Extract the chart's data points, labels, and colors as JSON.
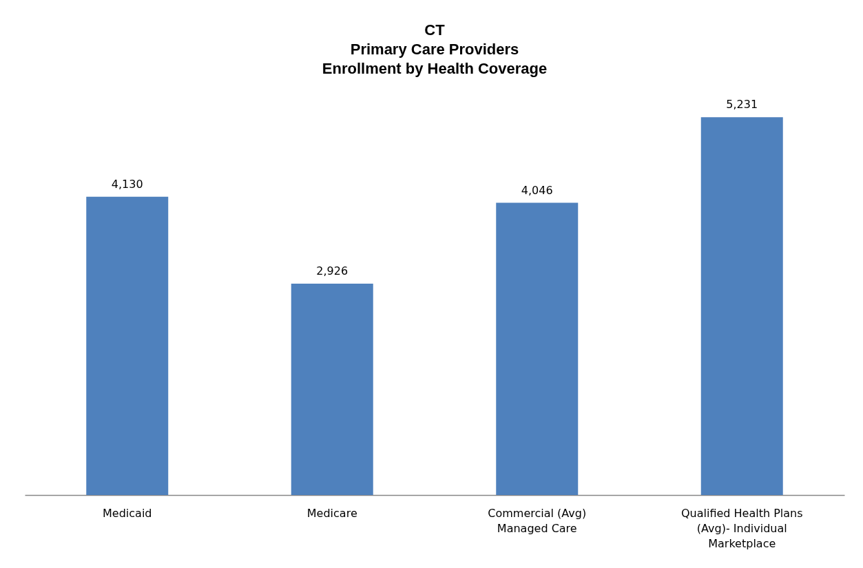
{
  "chart_data": {
    "type": "bar",
    "title": "CT\nPrimary Care Providers\nEnrollment by Health Coverage",
    "categories": [
      "Medicaid",
      "Medicare",
      "Commercial (Avg) Managed Care",
      "Qualified Health Plans (Avg)- Individual Marketplace"
    ],
    "values": [
      4130,
      2926,
      4046,
      5231
    ],
    "value_labels": [
      "4,130",
      "2,926",
      "4,046",
      "5,231"
    ],
    "color": "#4f81bd",
    "tick_labels": "x"
  }
}
